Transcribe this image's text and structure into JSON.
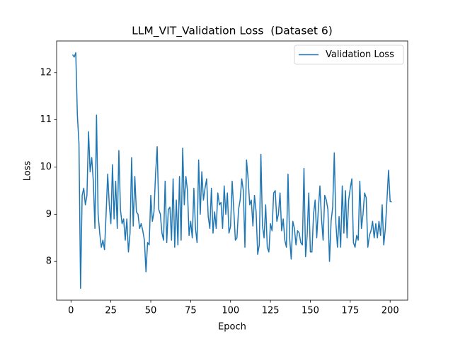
{
  "chart_data": {
    "type": "line",
    "title": "LLM_VIT_Validation Loss  (Dataset 6)",
    "xlabel": "Epoch",
    "ylabel": "Loss",
    "x": [
      1,
      2,
      3,
      4,
      5,
      6,
      7,
      8,
      9,
      10,
      11,
      12,
      13,
      14,
      15,
      16,
      17,
      18,
      19,
      20,
      21,
      22,
      23,
      24,
      25,
      26,
      27,
      28,
      29,
      30,
      31,
      32,
      33,
      34,
      35,
      36,
      37,
      38,
      39,
      40,
      41,
      42,
      43,
      44,
      45,
      46,
      47,
      48,
      49,
      50,
      51,
      52,
      53,
      54,
      55,
      56,
      57,
      58,
      59,
      60,
      61,
      62,
      63,
      64,
      65,
      66,
      67,
      68,
      69,
      70,
      71,
      72,
      73,
      74,
      75,
      76,
      77,
      78,
      79,
      80,
      81,
      82,
      83,
      84,
      85,
      86,
      87,
      88,
      89,
      90,
      91,
      92,
      93,
      94,
      95,
      96,
      97,
      98,
      99,
      100,
      101,
      102,
      103,
      104,
      105,
      106,
      107,
      108,
      109,
      110,
      111,
      112,
      113,
      114,
      115,
      116,
      117,
      118,
      119,
      120,
      121,
      122,
      123,
      124,
      125,
      126,
      127,
      128,
      129,
      130,
      131,
      132,
      133,
      134,
      135,
      136,
      137,
      138,
      139,
      140,
      141,
      142,
      143,
      144,
      145,
      146,
      147,
      148,
      149,
      150,
      151,
      152,
      153,
      154,
      155,
      156,
      157,
      158,
      159,
      160,
      161,
      162,
      163,
      164,
      165,
      166,
      167,
      168,
      169,
      170,
      171,
      172,
      173,
      174,
      175,
      176,
      177,
      178,
      179,
      180,
      181,
      182,
      183,
      184,
      185,
      186,
      187,
      188,
      189,
      190,
      191,
      192,
      193,
      194,
      195,
      196,
      197,
      198,
      199,
      200,
      201
    ],
    "series": [
      {
        "name": "Validation Loss",
        "color": "#1f77b4",
        "values": [
          12.38,
          12.33,
          12.42,
          11.1,
          10.5,
          7.43,
          9.4,
          9.55,
          9.2,
          9.4,
          10.75,
          9.9,
          10.2,
          9.7,
          8.7,
          11.1,
          9.0,
          8.6,
          8.3,
          8.45,
          8.25,
          9.0,
          9.85,
          9.2,
          8.8,
          10.05,
          8.9,
          9.7,
          8.7,
          10.35,
          9.1,
          8.8,
          8.9,
          8.45,
          8.9,
          8.2,
          8.6,
          10.2,
          8.75,
          9.8,
          9.05,
          9.0,
          8.7,
          8.8,
          8.65,
          8.45,
          7.78,
          8.4,
          8.35,
          9.4,
          8.85,
          9.05,
          9.85,
          10.43,
          9.1,
          9.0,
          8.6,
          8.45,
          9.7,
          8.4,
          9.1,
          9.15,
          8.45,
          9.75,
          8.3,
          9.3,
          8.35,
          9.8,
          8.45,
          10.4,
          9.2,
          9.8,
          9.5,
          8.55,
          8.85,
          8.5,
          9.55,
          8.7,
          8.4,
          10.15,
          9.0,
          9.9,
          9.3,
          9.55,
          9.75,
          8.95,
          8.7,
          9.55,
          8.6,
          9.05,
          8.7,
          9.45,
          9.2,
          9.25,
          8.7,
          9.6,
          9.0,
          9.45,
          8.6,
          8.75,
          9.7,
          9.1,
          8.45,
          8.5,
          9.1,
          9.3,
          9.75,
          9.5,
          8.3,
          10.15,
          9.75,
          9.2,
          9.3,
          8.75,
          9.4,
          9.05,
          8.15,
          8.35,
          10.27,
          8.75,
          8.5,
          9.2,
          8.3,
          8.2,
          8.8,
          8.65,
          9.45,
          9.5,
          8.85,
          9.0,
          9.45,
          8.65,
          8.9,
          8.45,
          8.3,
          9.85,
          8.5,
          8.05,
          8.85,
          8.7,
          8.35,
          8.65,
          8.6,
          8.4,
          8.35,
          9.97,
          8.1,
          8.55,
          9.45,
          8.2,
          8.2,
          9.0,
          9.3,
          8.5,
          9.1,
          9.6,
          8.9,
          8.45,
          9.4,
          9.3,
          9.1,
          8.0,
          8.85,
          9.15,
          10.3,
          8.8,
          8.3,
          8.95,
          8.3,
          9.6,
          8.6,
          9.5,
          8.5,
          9.3,
          9.55,
          9.75,
          8.4,
          8.3,
          8.55,
          8.45,
          9.7,
          8.7,
          9.0,
          9.45,
          9.35,
          8.3,
          8.55,
          8.65,
          8.85,
          8.5,
          8.8,
          8.5,
          8.85,
          8.55,
          9.2,
          8.35,
          8.7,
          9.3,
          9.93,
          9.27,
          9.26
        ]
      }
    ],
    "xlim": [
      -9,
      211
    ],
    "xticks": [
      0,
      25,
      50,
      75,
      100,
      125,
      150,
      175,
      200
    ],
    "ylim": [
      7.18,
      12.67
    ],
    "yticks": [
      8,
      9,
      10,
      11,
      12
    ],
    "legend": "upper right"
  }
}
